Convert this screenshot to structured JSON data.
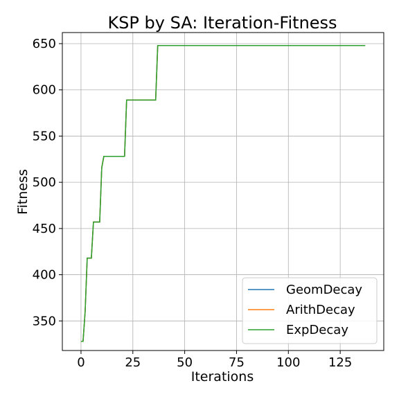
{
  "chart_data": {
    "type": "line",
    "title": "KSP by SA: Iteration-Fitness",
    "xlabel": "Iterations",
    "ylabel": "Fitness",
    "xlim": [
      -9,
      146
    ],
    "ylim": [
      318,
      662
    ],
    "xticks": [
      0,
      25,
      50,
      75,
      100,
      125
    ],
    "yticks": [
      350,
      400,
      450,
      500,
      550,
      600,
      650
    ],
    "grid": true,
    "legend_position": "lower-right",
    "colors": {
      "GeomDecay": "#1f77b4",
      "ArithDecay": "#ff7f0e",
      "ExpDecay": "#2ca02c"
    },
    "series": [
      {
        "name": "GeomDecay",
        "x": [
          0,
          1,
          2,
          3,
          4,
          5,
          6,
          7,
          8,
          9,
          10,
          11,
          20,
          21,
          22,
          35,
          36,
          37,
          137
        ],
        "y": [
          328,
          328,
          360,
          418,
          418,
          418,
          457,
          457,
          457,
          457,
          516,
          528,
          528,
          528,
          589,
          589,
          589,
          648,
          648
        ]
      },
      {
        "name": "ArithDecay",
        "x": [
          0,
          1,
          2,
          3,
          4,
          5,
          6,
          7,
          8,
          9,
          10,
          11,
          20,
          21,
          22,
          35,
          36,
          37,
          137
        ],
        "y": [
          328,
          328,
          360,
          418,
          418,
          418,
          457,
          457,
          457,
          457,
          516,
          528,
          528,
          528,
          589,
          589,
          589,
          648,
          648
        ]
      },
      {
        "name": "ExpDecay",
        "x": [
          0,
          1,
          2,
          3,
          4,
          5,
          6,
          7,
          8,
          9,
          10,
          11,
          20,
          21,
          22,
          35,
          36,
          37,
          137
        ],
        "y": [
          328,
          328,
          360,
          418,
          418,
          418,
          457,
          457,
          457,
          457,
          516,
          528,
          528,
          528,
          589,
          589,
          589,
          648,
          648
        ]
      }
    ]
  }
}
